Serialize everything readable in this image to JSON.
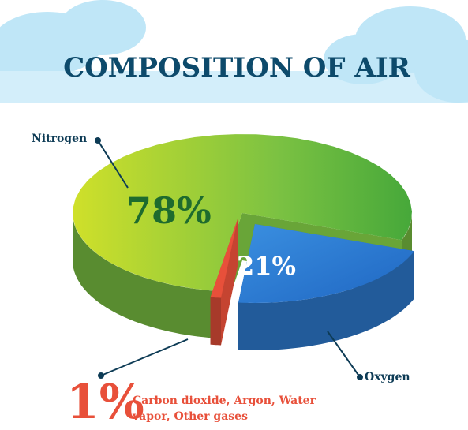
{
  "chart_data": {
    "type": "pie",
    "title": "COMPOSITION OF AIR",
    "categories": [
      "Nitrogen",
      "Oxygen",
      "Carbon dioxide, Argon, Water vapor, Other gases"
    ],
    "values": [
      78,
      21,
      1
    ],
    "value_labels": [
      "78%",
      "21%",
      "1%"
    ],
    "colors": [
      "#7cc242",
      "#2f7fd6",
      "#e8503a"
    ]
  }
}
